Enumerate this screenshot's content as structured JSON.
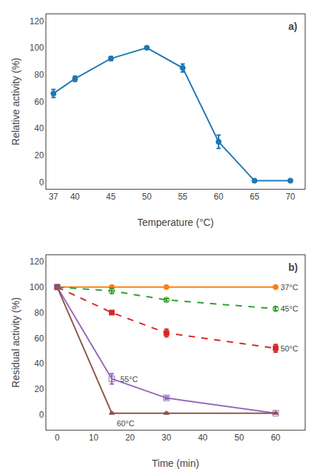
{
  "chart_data": [
    {
      "type": "line",
      "xlabel": "Temperature (°C)",
      "ylabel": "Relative activity (%)",
      "x": [
        37,
        40,
        45,
        50,
        55,
        60,
        65,
        70
      ],
      "series": [
        {
          "values": [
            66,
            77,
            92,
            100,
            85,
            30,
            1,
            1
          ],
          "errors": [
            3,
            2,
            1.5,
            0.5,
            3,
            5,
            0.5,
            0.5
          ],
          "marker": "circle",
          "line_style": "solid"
        }
      ],
      "xlim": [
        36,
        72
      ],
      "ylim": [
        -5,
        125
      ],
      "xticks": [
        37,
        40,
        45,
        50,
        55,
        60,
        65,
        70
      ],
      "yticks": [
        0,
        20,
        40,
        60,
        80,
        100,
        120
      ],
      "grid": false,
      "annotations": [
        {
          "text": "a)"
        }
      ]
    },
    {
      "type": "line",
      "xlabel": "Time (min)",
      "ylabel": "Residual activity (%)",
      "x": [
        0,
        15,
        30,
        60
      ],
      "series": [
        {
          "values": [
            100,
            100,
            100,
            100
          ],
          "errors": [
            0,
            0.5,
            0.5,
            0.5
          ],
          "marker": "circle",
          "line_style": "solid"
        },
        {
          "values": [
            100,
            97,
            90,
            83
          ],
          "errors": [
            0,
            2,
            1,
            1.5
          ],
          "marker": "circle-open",
          "line_style": "dash"
        },
        {
          "values": [
            100,
            80,
            64,
            52
          ],
          "errors": [
            0,
            1,
            3,
            3
          ],
          "marker": "square",
          "line_style": "dash"
        },
        {
          "values": [
            100,
            28,
            13,
            1
          ],
          "errors": [
            0,
            4,
            1,
            0.5
          ],
          "marker": "square-open",
          "line_style": "solid"
        },
        {
          "values": [
            100,
            1,
            1,
            1
          ],
          "errors": [
            0,
            0.5,
            0.5,
            0.5
          ],
          "marker": "triangle-up",
          "line_style": "solid"
        }
      ],
      "xlim": [
        -3,
        68
      ],
      "ylim": [
        -12,
        125
      ],
      "xticks": [
        0,
        10,
        20,
        30,
        40,
        50,
        60
      ],
      "yticks": [
        0,
        20,
        40,
        60,
        80,
        100,
        120
      ],
      "grid": false,
      "annotations": [
        {
          "text": "37°C",
          "x": 61,
          "y": 100
        },
        {
          "text": "45°C",
          "x": 61,
          "y": 83
        },
        {
          "text": "50°C",
          "x": 61,
          "y": 52
        },
        {
          "text": "55°C",
          "x": 17,
          "y": 28
        },
        {
          "text": "60°C",
          "x": 16,
          "y": -7
        },
        {
          "text": "b)"
        }
      ]
    }
  ]
}
